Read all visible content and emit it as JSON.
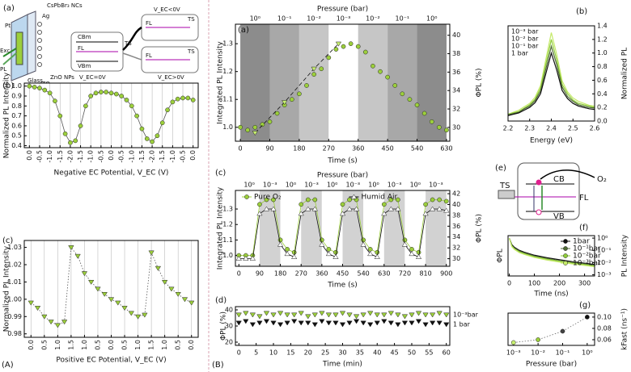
{
  "figure_labels": [
    "(A)",
    "(B)"
  ],
  "schematic_a": {
    "labels": [
      "(a)",
      "CsPbBr₃ NCs",
      "Pt",
      "Ag",
      "Exc",
      "PL",
      "Glass",
      "ITO",
      "ZnO NPs",
      "CBm",
      "FL",
      "VBm",
      "V_EC=0V",
      "TS",
      "V_EC<0V",
      "FL",
      "TS",
      "V_EC>0V",
      "FL",
      "TS"
    ]
  },
  "schematic_e": {
    "labels": [
      "(e)",
      "TS",
      "CB",
      "FL",
      "VB",
      "O₂"
    ]
  },
  "chart_data": [
    {
      "type": "scatter",
      "panel": "(b)",
      "xlabel": "Negative EC Potential, V_EC (V)",
      "ylabel": "Normalized PL Intensity",
      "grid": "x",
      "x": [
        0,
        0.5,
        1,
        1.5,
        2,
        2.5,
        3,
        3.5,
        4,
        4.5,
        5,
        5.5,
        6,
        6.5,
        7,
        7.5,
        8,
        8.5,
        9,
        9.5,
        10,
        10.5,
        11,
        11.5,
        12,
        12.5,
        13,
        13.5,
        14,
        14.5,
        15,
        15.5,
        16
      ],
      "series": [
        {
          "color": "#9ccf3c",
          "marker": "circle",
          "line": "solid",
          "line_color": "#555",
          "values": [
            1.0,
            0.99,
            0.98,
            0.96,
            0.93,
            0.85,
            0.7,
            0.52,
            0.43,
            0.45,
            0.6,
            0.8,
            0.9,
            0.93,
            0.94,
            0.94,
            0.93,
            0.92,
            0.9,
            0.86,
            0.8,
            0.7,
            0.57,
            0.47,
            0.44,
            0.5,
            0.63,
            0.76,
            0.84,
            0.87,
            0.88,
            0.88,
            0.86
          ]
        }
      ],
      "xlim": [
        -0.5,
        16.5
      ],
      "xticks": [
        {
          "value": 0,
          "label": "0.0"
        },
        {
          "value": 1,
          "label": "-0.5"
        },
        {
          "value": 2,
          "label": "-1.0"
        },
        {
          "value": 3,
          "label": "-1.5"
        },
        {
          "value": 4,
          "label": "-2.0"
        },
        {
          "value": 5,
          "label": "-1.5"
        },
        {
          "value": 6,
          "label": "-1.0"
        },
        {
          "value": 7,
          "label": "-0.5"
        },
        {
          "value": 8,
          "label": "0.0"
        },
        {
          "value": 9,
          "label": "-0.5"
        },
        {
          "value": 10,
          "label": "-1.0"
        },
        {
          "value": 11,
          "label": "-1.5"
        },
        {
          "value": 12,
          "label": "-2.0"
        },
        {
          "value": 13,
          "label": "-1.5"
        },
        {
          "value": 14,
          "label": "-1.0"
        },
        {
          "value": 15,
          "label": "-0.5"
        },
        {
          "value": 16,
          "label": "0.0"
        }
      ],
      "ylim": [
        0.38,
        1.03
      ],
      "yticks": [
        0.4,
        0.5,
        0.6,
        0.7,
        0.8,
        0.9,
        {
          "value": 1,
          "label": "1.0"
        }
      ]
    },
    {
      "type": "scatter",
      "panel": "(c)",
      "xlabel": "Positive EC Potential, V_EC (V)",
      "ylabel": "Normalized PL Intensity",
      "grid": "x",
      "x": [
        0,
        0.5,
        1,
        1.5,
        2,
        2.5,
        3,
        3.5,
        4,
        4.5,
        5,
        5.5,
        6,
        6.5,
        7,
        7.5,
        8,
        8.5,
        9,
        9.5,
        10,
        10.5,
        11,
        11.5,
        12
      ],
      "series": [
        {
          "color": "#9ccf3c",
          "marker": "triangle-down",
          "line": "dotted",
          "line_color": "#555",
          "values": [
            0.998,
            0.995,
            0.99,
            0.987,
            0.985,
            0.987,
            1.03,
            1.025,
            1.015,
            1.01,
            1.006,
            1.003,
            1.0,
            0.998,
            0.995,
            0.992,
            0.99,
            0.991,
            1.027,
            1.018,
            1.01,
            1.006,
            1.003,
            1.0,
            0.998
          ]
        }
      ],
      "xlim": [
        -0.5,
        12.5
      ],
      "xticks": [
        {
          "value": 0,
          "label": "0.0"
        },
        {
          "value": 1,
          "label": "0.5"
        },
        {
          "value": 2,
          "label": "1.0"
        },
        {
          "value": 3,
          "label": "1.5"
        },
        {
          "value": 4,
          "label": "1.0"
        },
        {
          "value": 5,
          "label": "0.5"
        },
        {
          "value": 6,
          "label": "0.0"
        },
        {
          "value": 7,
          "label": "0.5"
        },
        {
          "value": 8,
          "label": "1.0"
        },
        {
          "value": 9,
          "label": "1.5"
        },
        {
          "value": 10,
          "label": "1.0"
        },
        {
          "value": 11,
          "label": "0.5"
        },
        {
          "value": 12,
          "label": "0.0"
        }
      ],
      "ylim": [
        0.978,
        1.034
      ],
      "yticks": [
        0.98,
        0.99,
        {
          "value": 1,
          "label": "1.00"
        },
        1.01,
        1.02,
        1.03
      ]
    },
    {
      "type": "scatter",
      "panel": "(a)",
      "xlabel": "Time (s)",
      "ylabel": "Integrated PL Intensity",
      "y2label": "ΦPL (%)",
      "top_label": "Pressure (bar)",
      "top_categories": [
        "10⁰",
        "10⁻¹",
        "10⁻²",
        "10⁻³",
        "10⁻²",
        "10⁻¹",
        "10⁰"
      ],
      "band_colors": [
        "#8c8c8c",
        "#a8a8a8",
        "#c6c6c6",
        "#ffffff",
        "#c6c6c6",
        "#a8a8a8",
        "#8c8c8c"
      ],
      "series": [
        {
          "color": "#9ccf3c",
          "marker": "circle",
          "line": "none",
          "x": [
            0,
            22.5,
            45,
            67.5,
            90,
            112.5,
            135,
            157.5,
            180,
            202.5,
            225,
            247.5,
            270,
            292.5,
            315,
            337.5,
            360,
            382.5,
            405,
            427.5,
            450,
            472.5,
            495,
            517.5,
            540,
            562.5,
            585,
            607.5,
            630
          ],
          "values": [
            1.0,
            0.99,
            1.0,
            1.01,
            1.02,
            1.05,
            1.08,
            1.1,
            1.12,
            1.15,
            1.19,
            1.21,
            1.25,
            1.28,
            1.29,
            1.3,
            1.29,
            1.27,
            1.22,
            1.2,
            1.18,
            1.15,
            1.12,
            1.1,
            1.08,
            1.05,
            1.02,
            1.0,
            0.99
          ]
        },
        {
          "color": "#c8f070",
          "marker": "triangle-down",
          "line": "dashed",
          "line_color": "#111",
          "x": [
            45,
            135,
            225,
            300
          ],
          "values": [
            0.98,
            1.09,
            1.21,
            1.3
          ]
        }
      ],
      "xlim": [
        -15,
        640
      ],
      "xticks": [
        0,
        90,
        180,
        270,
        360,
        450,
        540,
        630
      ],
      "ylim": [
        0.95,
        1.37
      ],
      "yticks": [
        {
          "value": 1,
          "label": "1.0"
        },
        1.1,
        1.2,
        1.3
      ],
      "y2lim": [
        28.5,
        41.2
      ],
      "y2ticks": [
        30,
        32,
        34,
        36,
        38,
        40
      ]
    },
    {
      "type": "line",
      "panel": "(b)",
      "xlabel": "Energy (eV)",
      "y2label": "Normalized PL",
      "legend": "upper left",
      "x": [
        2.2,
        2.225,
        2.25,
        2.275,
        2.3,
        2.325,
        2.35,
        2.375,
        2.4,
        2.425,
        2.45,
        2.475,
        2.5,
        2.525,
        2.55,
        2.575,
        2.6
      ],
      "series": [
        {
          "name": "10⁻³ bar",
          "color": "#c5ea6a",
          "line": "solid",
          "axis": "y2",
          "values": [
            0.1,
            0.13,
            0.16,
            0.21,
            0.26,
            0.35,
            0.52,
            0.91,
            1.3,
            0.98,
            0.59,
            0.43,
            0.34,
            0.29,
            0.26,
            0.23,
            0.22
          ]
        },
        {
          "name": "10⁻² bar",
          "color": "#8fcc3a",
          "line": "solid",
          "axis": "y2",
          "values": [
            0.1,
            0.12,
            0.14,
            0.19,
            0.24,
            0.32,
            0.48,
            0.84,
            1.2,
            0.9,
            0.54,
            0.4,
            0.31,
            0.26,
            0.24,
            0.22,
            0.2
          ]
        },
        {
          "name": "10⁻¹ bar",
          "color": "#4f6b35",
          "line": "solid",
          "axis": "y2",
          "values": [
            0.09,
            0.11,
            0.13,
            0.18,
            0.22,
            0.3,
            0.44,
            0.77,
            1.1,
            0.83,
            0.5,
            0.36,
            0.29,
            0.24,
            0.22,
            0.2,
            0.19
          ]
        },
        {
          "name": "1 bar",
          "color": "#111111",
          "line": "solid",
          "axis": "y2",
          "values": [
            0.08,
            0.1,
            0.12,
            0.16,
            0.2,
            0.27,
            0.4,
            0.7,
            1.0,
            0.75,
            0.45,
            0.33,
            0.26,
            0.22,
            0.2,
            0.18,
            0.17
          ]
        }
      ],
      "xlim": [
        2.2,
        2.6
      ],
      "xticks": [
        2.2,
        2.3,
        2.4,
        2.5,
        2.6
      ],
      "y2lim": [
        0,
        1.4
      ],
      "y2ticks": [
        {
          "value": 0,
          "label": "0.0"
        },
        0.2,
        0.4,
        0.6,
        0.8,
        {
          "value": 1,
          "label": "1.0"
        },
        1.2,
        1.4
      ]
    },
    {
      "type": "scatter",
      "panel": "(c)",
      "xlabel": "Time (s)",
      "ylabel": "Integrated PL Intensity",
      "y2label": "ΦPL (%)",
      "top_label": "Pressure (bar)",
      "legend": "top",
      "top_categories": [
        "10⁰",
        "10⁻³",
        "10⁰",
        "10⁻³",
        "10⁰",
        "10⁻³",
        "10⁰",
        "10⁻³",
        "10⁰",
        "10⁻³"
      ],
      "band_colors": [
        "#ffffff",
        "#d2d2d2",
        "#ffffff",
        "#d2d2d2",
        "#ffffff",
        "#d2d2d2",
        "#ffffff",
        "#d2d2d2",
        "#ffffff",
        "#d2d2d2"
      ],
      "x": [
        0,
        30,
        60,
        90,
        120,
        150,
        180,
        210,
        240,
        270,
        300,
        330,
        360,
        390,
        420,
        450,
        480,
        510,
        540,
        570,
        600,
        630,
        660,
        690,
        720,
        750,
        780,
        810,
        840,
        870,
        900
      ],
      "series": [
        {
          "name": "Pure O₂",
          "color": "#9ccf3c",
          "marker": "circle",
          "line": "solid",
          "values": [
            1.0,
            1.0,
            1.0,
            1.33,
            1.36,
            1.36,
            1.1,
            1.04,
            1.02,
            1.33,
            1.36,
            1.36,
            1.1,
            1.04,
            1.02,
            1.33,
            1.36,
            1.36,
            1.1,
            1.04,
            1.02,
            1.33,
            1.36,
            1.36,
            1.1,
            1.04,
            1.02,
            1.33,
            1.36,
            1.36,
            1.35
          ]
        },
        {
          "name": "Humid Air",
          "color": "#ffffff",
          "marker": "triangle",
          "line": "solid",
          "line_color": "#111",
          "values": [
            0.98,
            0.98,
            0.98,
            1.27,
            1.3,
            1.3,
            1.07,
            1.01,
            0.99,
            1.27,
            1.3,
            1.3,
            1.07,
            1.01,
            0.99,
            1.27,
            1.3,
            1.3,
            1.07,
            1.01,
            0.99,
            1.27,
            1.3,
            1.3,
            1.07,
            1.01,
            0.99,
            1.27,
            1.3,
            1.3,
            1.29
          ]
        }
      ],
      "xlim": [
        -15,
        915
      ],
      "xticks": [
        0,
        90,
        180,
        270,
        360,
        450,
        540,
        630,
        720,
        810,
        900
      ],
      "ylim": [
        0.93,
        1.42
      ],
      "yticks": [
        {
          "value": 1,
          "label": "1.0"
        },
        1.1,
        1.2,
        1.3
      ],
      "y2lim": [
        28.6,
        42.6
      ],
      "y2ticks": [
        30,
        32,
        34,
        36,
        38,
        40,
        42
      ]
    },
    {
      "type": "scatter",
      "panel": "(d)",
      "xlabel": "Time (min)",
      "ylabel": "ΦPL (%)",
      "legend": "end",
      "x": [
        0,
        2,
        4,
        6,
        8,
        10,
        12,
        14,
        16,
        18,
        20,
        22,
        24,
        26,
        28,
        30,
        32,
        34,
        36,
        38,
        40,
        42,
        44,
        46,
        48,
        50,
        52,
        54,
        56,
        58,
        60
      ],
      "series": [
        {
          "name": "10⁻³bar",
          "color": "#9ccf3c",
          "marker": "triangle-down",
          "line": "none",
          "values": [
            37,
            38,
            37,
            36,
            38,
            37,
            38,
            37,
            37,
            38,
            36,
            37,
            38,
            37,
            37,
            38,
            37,
            36,
            37,
            38,
            37,
            37,
            38,
            37,
            36,
            37,
            38,
            37,
            37,
            38,
            37
          ]
        },
        {
          "name": "1 bar",
          "color": "#111111",
          "marker": "triangle-down",
          "line": "none",
          "values": [
            32,
            33,
            31,
            32,
            33,
            32,
            31,
            32,
            33,
            32,
            32,
            31,
            33,
            32,
            32,
            31,
            32,
            33,
            32,
            31,
            32,
            33,
            32,
            31,
            32,
            32,
            33,
            31,
            32,
            32,
            31
          ]
        }
      ],
      "xlim": [
        -1,
        61
      ],
      "xticks": [
        0,
        5,
        10,
        15,
        20,
        25,
        30,
        35,
        40,
        45,
        50,
        55,
        60
      ],
      "ylim": [
        18,
        42
      ],
      "yticks": [
        20,
        30,
        40
      ]
    },
    {
      "type": "line",
      "panel": "(f)",
      "xlabel": "Time (ns)",
      "ylabel": "ΦPL",
      "y2label": "PL Intensity",
      "legend": "upper right",
      "legend_marker": "circle",
      "y2log": true,
      "x": [
        0,
        10,
        20,
        40,
        60,
        100,
        150,
        200,
        250,
        300,
        340
      ],
      "series": [
        {
          "name": "1bar",
          "color": "#111111",
          "line": "solid",
          "axis": "y2",
          "values": [
            1,
            0.3,
            0.18,
            0.1,
            0.07,
            0.04,
            0.025,
            0.017,
            0.012,
            0.009,
            0.007
          ]
        },
        {
          "name": "10⁻¹bar",
          "color": "#4f6b35",
          "line": "solid",
          "axis": "y2",
          "values": [
            1,
            0.26,
            0.15,
            0.085,
            0.06,
            0.034,
            0.021,
            0.014,
            0.01,
            0.0077,
            0.006
          ]
        },
        {
          "name": "10⁻²bar",
          "color": "#8fcc3a",
          "line": "solid",
          "axis": "y2",
          "values": [
            1,
            0.23,
            0.135,
            0.075,
            0.053,
            0.03,
            0.019,
            0.013,
            0.009,
            0.0068,
            0.0053
          ]
        },
        {
          "name": "10⁻³bar",
          "color": "#c5ea6a",
          "line": "solid",
          "axis": "y2",
          "values": [
            1,
            0.2,
            0.12,
            0.065,
            0.046,
            0.026,
            0.016,
            0.011,
            0.0078,
            0.0059,
            0.0046
          ]
        }
      ],
      "xlim": [
        -5,
        340
      ],
      "xticks": [
        0,
        100,
        200,
        300
      ],
      "y2lim": [
        0.0008,
        1.6
      ],
      "y2ticks": [
        {
          "value": 0.001,
          "label": "10⁻³"
        },
        {
          "value": 0.01,
          "label": "10⁻²"
        },
        {
          "value": 0.1,
          "label": "10⁻¹"
        },
        {
          "value": 1,
          "label": "10⁰"
        }
      ]
    },
    {
      "type": "scatter",
      "panel": "(g)",
      "xlabel": "Pressure (bar)",
      "y2label": "kFast (ns⁻¹)",
      "xlog": true,
      "x": [
        0.001,
        0.01,
        0.1,
        1
      ],
      "series": [
        {
          "colors": [
            "#c8f070",
            "#9ccf3c",
            "#444444",
            "#111111"
          ],
          "marker": "circle",
          "line": "dotted",
          "line_color": "#666",
          "axis": "y2",
          "values": [
            0.055,
            0.06,
            0.075,
            0.1
          ]
        }
      ],
      "xlim": [
        0.0006,
        2
      ],
      "xticks": [
        {
          "value": 0.001,
          "label": "10⁻³"
        },
        {
          "value": 0.01,
          "label": "10⁻²"
        },
        {
          "value": 0.1,
          "label": "10⁻¹"
        },
        {
          "value": 1,
          "label": "10⁰"
        }
      ],
      "y2lim": [
        0.05,
        0.107
      ],
      "y2ticks": [
        0.06,
        0.08,
        {
          "value": 0.1,
          "label": "0.10"
        }
      ]
    }
  ]
}
